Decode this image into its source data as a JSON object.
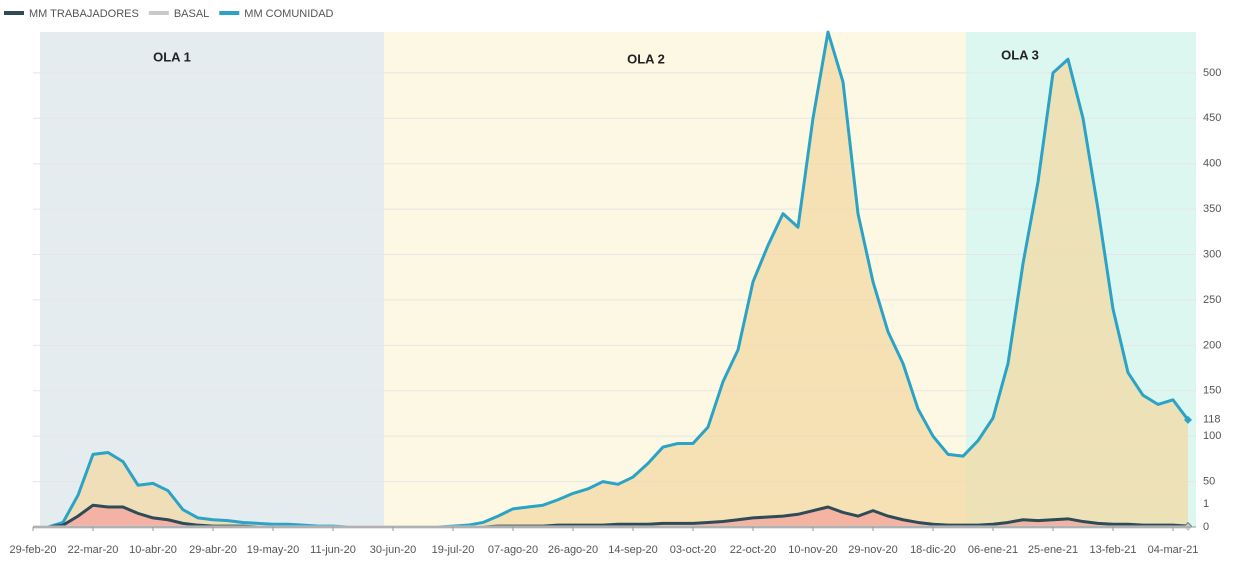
{
  "chart_data": {
    "type": "line",
    "area": true,
    "bands": [
      {
        "label": "OLA 1"
      },
      {
        "label": "OLA 2"
      },
      {
        "label": "OLA 3"
      }
    ],
    "categories": [
      "29-feb-20",
      null,
      null,
      null,
      "22-mar-20",
      null,
      null,
      null,
      "10-abr-20",
      null,
      null,
      null,
      "29-abr-20",
      null,
      null,
      null,
      "19-may-20",
      null,
      null,
      null,
      "11-jun-20",
      null,
      null,
      null,
      "30-jun-20",
      null,
      null,
      null,
      "19-jul-20",
      null,
      null,
      null,
      "07-ago-20",
      null,
      null,
      null,
      "26-ago-20",
      null,
      null,
      null,
      "14-sep-20",
      null,
      null,
      null,
      "03-oct-20",
      null,
      null,
      null,
      "22-oct-20",
      null,
      null,
      null,
      "10-nov-20",
      null,
      null,
      null,
      "29-nov-20",
      null,
      null,
      null,
      "18-dic-20",
      null,
      null,
      null,
      "06-ene-21",
      null,
      null,
      null,
      "25-ene-21",
      null,
      null,
      null,
      "13-feb-21",
      null,
      null,
      null,
      "04-mar-21",
      null
    ],
    "series": [
      {
        "name": "MM TRABAJADORES",
        "color": "#2d4c57",
        "fill": "#f4a39c",
        "values": [
          0,
          0,
          2,
          12,
          24,
          22,
          22,
          15,
          10,
          8,
          4,
          2,
          1,
          1,
          1,
          0,
          0,
          0,
          0,
          0,
          0,
          0,
          0,
          0,
          0,
          0,
          0,
          0,
          0,
          0,
          0,
          1,
          1,
          1,
          1,
          2,
          2,
          2,
          2,
          3,
          3,
          3,
          4,
          4,
          4,
          5,
          6,
          8,
          10,
          11,
          12,
          14,
          18,
          22,
          16,
          12,
          18,
          12,
          8,
          5,
          3,
          2,
          2,
          2,
          3,
          5,
          8,
          7,
          8,
          9,
          6,
          4,
          3,
          3,
          2,
          2,
          2,
          1
        ]
      },
      {
        "name": "BASAL",
        "color": "#c9c9c9",
        "values": [
          0,
          0,
          0,
          0,
          0,
          0,
          0,
          0,
          0,
          0,
          0,
          0,
          0,
          0,
          0,
          0,
          0,
          0,
          0,
          0,
          0,
          0,
          0,
          0,
          0,
          0,
          0,
          0,
          0,
          0,
          0,
          0,
          0,
          0,
          0,
          0,
          0,
          0,
          0,
          0,
          0,
          0,
          0,
          0,
          0,
          0,
          0,
          0,
          0,
          0,
          0,
          0,
          0,
          0,
          0,
          0,
          0,
          0,
          0,
          0,
          0,
          0,
          0,
          0,
          0,
          0,
          0,
          0,
          0,
          0,
          0,
          0,
          0,
          0,
          0,
          0,
          0,
          0
        ]
      },
      {
        "name": "MM COMUNIDAD",
        "color": "#2aa3c6",
        "fill": "#f3d9a6",
        "values": [
          0,
          0,
          5,
          35,
          80,
          82,
          72,
          46,
          48,
          40,
          19,
          10,
          8,
          7,
          5,
          4,
          3,
          3,
          2,
          1,
          1,
          0,
          0,
          0,
          0,
          0,
          0,
          0,
          1,
          2,
          5,
          12,
          20,
          22,
          24,
          30,
          37,
          42,
          50,
          47,
          55,
          70,
          88,
          92,
          92,
          110,
          160,
          195,
          270,
          310,
          345,
          330,
          450,
          545,
          490,
          345,
          270,
          215,
          180,
          130,
          100,
          80,
          78,
          95,
          120,
          180,
          290,
          380,
          500,
          515,
          450,
          350,
          240,
          170,
          145,
          135,
          140,
          118
        ]
      }
    ],
    "ylim": [
      0,
      545
    ],
    "yticks": [
      50,
      100,
      150,
      200,
      250,
      300,
      350,
      400,
      450,
      500
    ],
    "grid": true
  }
}
